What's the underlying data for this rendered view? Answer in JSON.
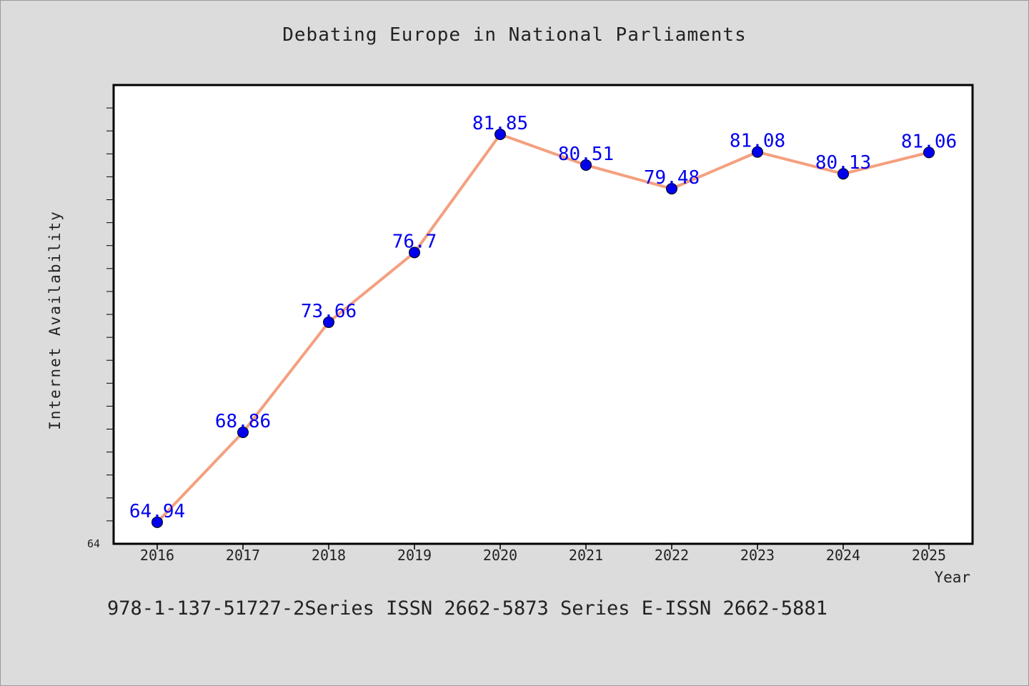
{
  "chart_data": {
    "type": "line",
    "title": "Debating Europe in National Parliaments",
    "xlabel": "Year",
    "ylabel": "Internet Availability",
    "x": [
      "2016",
      "2017",
      "2018",
      "2019",
      "2020",
      "2021",
      "2022",
      "2023",
      "2024",
      "2025"
    ],
    "series": [
      {
        "values": [
          64.94,
          68.86,
          73.66,
          76.7,
          81.85,
          80.51,
          79.48,
          81.08,
          80.13,
          81.06
        ],
        "data_labels": [
          "64.94",
          "68.86",
          "73.66",
          "76.7",
          "81.85",
          "80.51",
          "79.48",
          "81.08",
          "80.13",
          "81.06"
        ],
        "line_color": "#f4a07f",
        "marker_color": "#0000ee"
      }
    ],
    "ylim": [
      64,
      84
    ],
    "y_tick_labels": [
      "64"
    ],
    "y_minor_step": 1,
    "grid": false,
    "label_color": "#0000ee"
  },
  "caption": "978-1-137-51727-2Series ISSN 2662-5873 Series E-ISSN 2662-5881"
}
